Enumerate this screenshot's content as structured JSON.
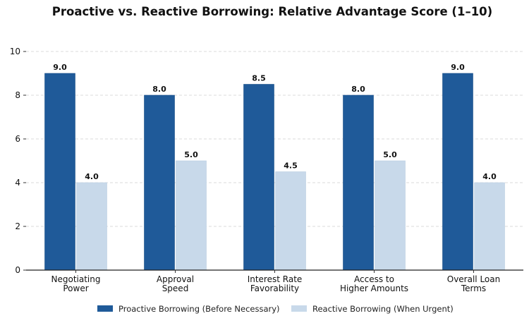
{
  "chart_data": {
    "type": "bar",
    "title": "Proactive vs. Reactive Borrowing: Relative Advantage Score (1–10)",
    "xlabel": "",
    "ylabel": "",
    "ylim": [
      0,
      10
    ],
    "yticks": [
      "0",
      "2",
      "4",
      "6",
      "8",
      "10"
    ],
    "grid": true,
    "legend_position": "bottom-center",
    "categories": [
      [
        "Negotiating",
        "Power"
      ],
      [
        "Approval",
        "Speed"
      ],
      [
        "Interest Rate",
        "Favorability"
      ],
      [
        "Access to",
        "Higher Amounts"
      ],
      [
        "Overall Loan",
        "Terms"
      ]
    ],
    "series": [
      {
        "name": "Proactive Borrowing (Before Necessary)",
        "color": "#1f5a99",
        "values": [
          9.0,
          8.0,
          8.5,
          8.0,
          9.0
        ],
        "labels": [
          "9.0",
          "8.0",
          "8.5",
          "8.0",
          "9.0"
        ]
      },
      {
        "name": "Reactive Borrowing (When Urgent)",
        "color": "#c8d9ea",
        "values": [
          4.0,
          5.0,
          4.5,
          5.0,
          4.0
        ],
        "labels": [
          "4.0",
          "5.0",
          "4.5",
          "5.0",
          "4.0"
        ]
      }
    ]
  }
}
